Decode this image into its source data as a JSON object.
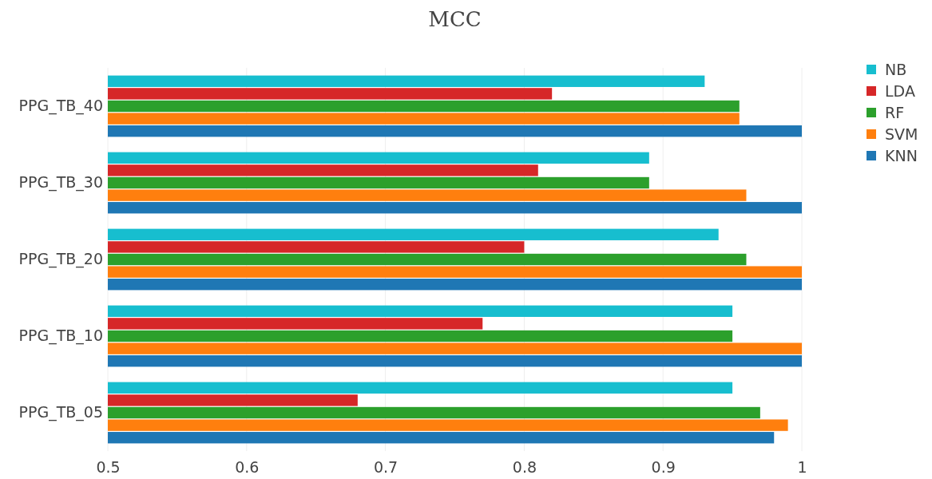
{
  "chart_data": {
    "type": "bar",
    "title": "MCC",
    "orientation": "horizontal",
    "categories": [
      "PPG_TB_40",
      "PPG_TB_30",
      "PPG_TB_20",
      "PPG_TB_10",
      "PPG_TB_05"
    ],
    "series": [
      {
        "name": "NB",
        "color": "#17becf",
        "values": [
          0.93,
          0.89,
          0.94,
          0.95,
          0.95
        ]
      },
      {
        "name": "LDA",
        "color": "#d62728",
        "values": [
          0.82,
          0.81,
          0.8,
          0.77,
          0.68
        ]
      },
      {
        "name": "RF",
        "color": "#2ca02c",
        "values": [
          0.955,
          0.89,
          0.96,
          0.95,
          0.97
        ]
      },
      {
        "name": "SVM",
        "color": "#ff7f0e",
        "values": [
          0.955,
          0.96,
          1,
          1,
          0.99
        ]
      },
      {
        "name": "KNN",
        "color": "#1f77b4",
        "values": [
          1,
          1,
          1,
          1,
          0.98
        ]
      }
    ],
    "xlim": [
      0.5,
      1
    ],
    "xticks": [
      0.5,
      0.6,
      0.7,
      0.8,
      0.9,
      1
    ],
    "grid": "x",
    "legend": "top right"
  }
}
